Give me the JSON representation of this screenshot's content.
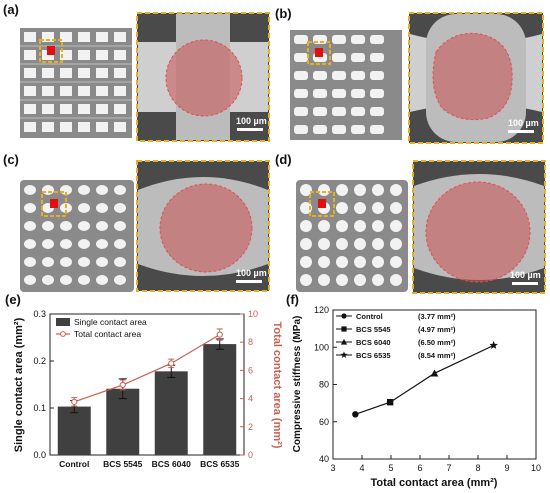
{
  "figure": {
    "panel_labels": [
      "(a)",
      "(b)",
      "(c)",
      "(d)",
      "(e)",
      "(f)"
    ],
    "scale_bar_label": "100 µm",
    "colors": {
      "highlight_box": "#e8b020",
      "contact_overlay": "#c85050",
      "sem_background": "#4a4a4a",
      "line_series": "#c86050"
    }
  },
  "chart_data": [
    {
      "type": "bar",
      "panel": "(e)",
      "categories": [
        "Control",
        "BCS 5545",
        "BCS 6040",
        "BCS 6535"
      ],
      "series": [
        {
          "name": "Single contact area",
          "values": [
            0.103,
            0.141,
            0.178,
            0.236
          ],
          "errors": [
            0.013,
            0.021,
            0.013,
            0.011
          ],
          "axis": "left",
          "color": "#404040"
        },
        {
          "name": "Total contact area",
          "values": [
            3.77,
            4.97,
            6.5,
            8.54
          ],
          "errors": [
            0.3,
            0.35,
            0.3,
            0.4
          ],
          "axis": "right",
          "style": "line",
          "color": "#c86050"
        }
      ],
      "ylabel": "Single contact area (mm²)",
      "ylabel_right": "Total contact area (mm²)",
      "ylim": [
        0.0,
        0.3
      ],
      "ylim_right": [
        0,
        10
      ],
      "yticks": [
        "0.0",
        "0.1",
        "0.2",
        "0.3"
      ],
      "yticks_right": [
        "0",
        "2",
        "4",
        "6",
        "8",
        "10"
      ],
      "legend": "top-left"
    },
    {
      "type": "line",
      "panel": "(f)",
      "series": [
        {
          "name": "Compressive stiffness",
          "x": [
            3.77,
            4.97,
            6.5,
            8.54
          ],
          "y": [
            64,
            70.5,
            86,
            101
          ],
          "markers": [
            "circle",
            "square",
            "triangle",
            "star"
          ]
        }
      ],
      "legend_entries": [
        "Control",
        "BCS 5545",
        "BCS 6040",
        "BCS 6535"
      ],
      "legend_values": [
        "(3.77 mm²)",
        "(4.97 mm²)",
        "(6.50 mm²)",
        "(8.54 mm²)"
      ],
      "xlabel": "Total contact area (mm²)",
      "ylabel": "Compressive stiffness (MPa)",
      "xlim": [
        3,
        10
      ],
      "ylim": [
        40,
        120
      ],
      "xticks": [
        "3",
        "4",
        "5",
        "6",
        "7",
        "8",
        "9",
        "10"
      ],
      "yticks": [
        "40",
        "60",
        "80",
        "100",
        "120"
      ],
      "legend": "top-left"
    }
  ]
}
